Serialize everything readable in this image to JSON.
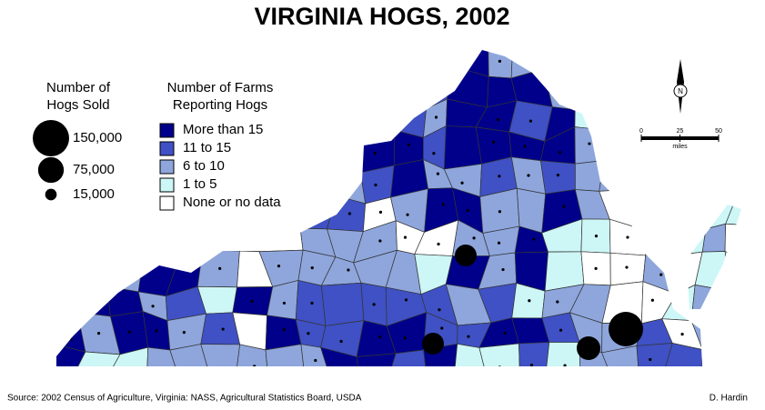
{
  "title": "VIRGINIA HOGS, 2002",
  "hogs_legend": {
    "title_lines": [
      "Number of",
      "Hogs Sold"
    ],
    "items": [
      {
        "value": 150000,
        "label": "150,000"
      },
      {
        "value": 75000,
        "label": "75,000"
      },
      {
        "value": 15000,
        "label": "15,000"
      }
    ]
  },
  "farms_legend": {
    "title_lines": [
      "Number of Farms",
      "Reporting Hogs"
    ],
    "items": [
      {
        "label": "More than 15",
        "color": "#00008b"
      },
      {
        "label": "11 to 15",
        "color": "#3f51c4"
      },
      {
        "label": "6 to 10",
        "color": "#8ea6dc"
      },
      {
        "label": "1 to   5",
        "color": "#cdf6f6"
      },
      {
        "label": "None or no data",
        "color": "#ffffff"
      }
    ]
  },
  "north_label": "N",
  "scale_bar": {
    "ticks": [
      0,
      25,
      50
    ],
    "unit": "miles"
  },
  "source": "Source: 2002 Census of Agriculture, Virginia: NASS, Agricultural Statistics Board, USDA",
  "author": "D. Hardin"
}
